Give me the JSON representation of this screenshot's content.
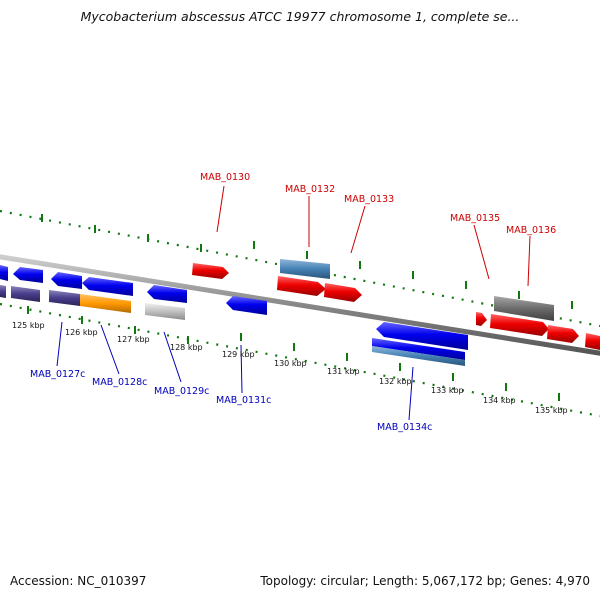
{
  "header": {
    "title": "Mycobacterium abscessus ATCC 19977 chromosome 1, complete se..."
  },
  "footer": {
    "accession": "Accession: NC_010397",
    "summary": "Topology: circular; Length: 5,067,172 bp; Genes: 4,970"
  },
  "colors": {
    "forward_gene": "#ee0000",
    "reverse_gene": "#0000ee",
    "backbone": "#888888",
    "ticks": "#117711",
    "forward_label": "#cc0000",
    "reverse_label": "#0000bb"
  },
  "scale_labels": [
    "125 kbp",
    "126 kbp",
    "127 kbp",
    "128 kbp",
    "129 kbp",
    "130 kbp",
    "131 kbp",
    "132 kbp",
    "133 kbp",
    "134 kbp",
    "135 kbp"
  ],
  "forward_labels": [
    "MAB_0130",
    "MAB_0132",
    "MAB_0133",
    "MAB_0135",
    "MAB_0136"
  ],
  "reverse_labels": [
    "MAB_0127c",
    "MAB_0128c",
    "MAB_0129c",
    "MAB_0131c",
    "MAB_0134c"
  ]
}
